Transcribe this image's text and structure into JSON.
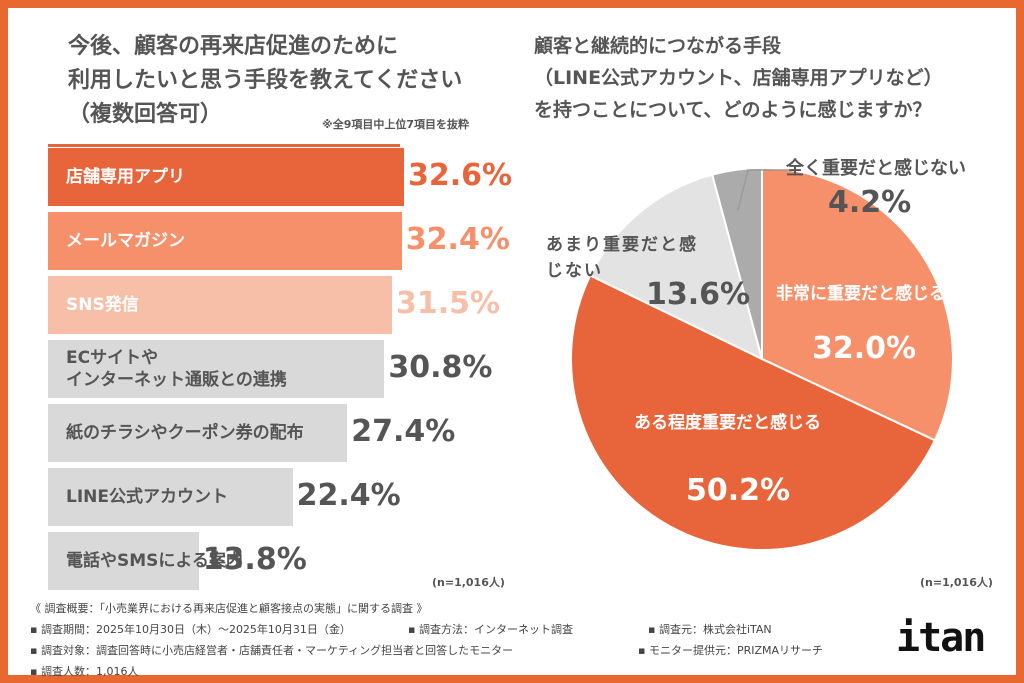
{
  "left_chart": {
    "title_lines": [
      "今後、顧客の再来店促進のために",
      "利用したいと思う手段を教えてください",
      "（複数回答可）"
    ],
    "note": "※全9項目中上位7項目を抜粋",
    "n": "(n=1,016人)"
  },
  "right_chart": {
    "title_lines": [
      "顧客と継続的につながる手段",
      "（LINE公式アカウント、店舗専用アプリなど）",
      "を持つことについて、どのように感じますか？"
    ],
    "n": "(n=1,016人)"
  },
  "chart_data": [
    {
      "type": "bar",
      "orientation": "horizontal",
      "categories": [
        "店舗専用アプリ",
        "メールマガジン",
        "SNS発信",
        "ECサイトや\nインターネット通販との連携",
        "紙のチラシやクーポン券の配布",
        "LINE公式アカウント",
        "電話やSMSによる案内"
      ],
      "values": [
        32.6,
        32.4,
        31.5,
        30.8,
        27.4,
        22.4,
        13.8
      ],
      "labels": [
        "32.6%",
        "32.4%",
        "31.5%",
        "30.8%",
        "27.4%",
        "22.4%",
        "13.8%"
      ],
      "colors": [
        "#E8643A",
        "#F5906A",
        "#F8BFA8",
        "#D9D9D9",
        "#D9D9D9",
        "#D9D9D9",
        "#D9D9D9"
      ],
      "label_colors": [
        "#E8643A",
        "#F5906A",
        "#F8BFA8",
        "#555555",
        "#555555",
        "#555555",
        "#555555"
      ]
    },
    {
      "type": "pie",
      "start": "12 o'clock",
      "direction": "clockwise",
      "categories": [
        "非常に重要だと感じる",
        "ある程度重要だと感じる",
        "あまり重要だと感じない",
        "全く重要だと感じない"
      ],
      "values": [
        32.0,
        50.2,
        13.6,
        4.2
      ],
      "labels": [
        "32.0%",
        "50.2%",
        "13.6%",
        "4.2%"
      ],
      "colors": [
        "#F5906A",
        "#E8643A",
        "#E3E3E3",
        "#ABABAB"
      ]
    }
  ],
  "footer": {
    "summary": "《 調査概要：「小売業界における再来店促進と顧客接点の実態」に関する調査 》",
    "period": "▪ 調査期間：2025年10月30日（木）〜2025年10月31日（金）",
    "method": "▪ 調査方法：インターネット調査",
    "source": "▪ 調査元：株式会社iTAN",
    "target": "▪ 調査対象：調査回答時に小売店経営者・店舗責任者・マーケティング担当者と回答したモニター",
    "provider": "▪ モニター提供元：PRIZMAリサーチ",
    "count": "▪ 調査人数：1,016人"
  },
  "logo": "itan"
}
